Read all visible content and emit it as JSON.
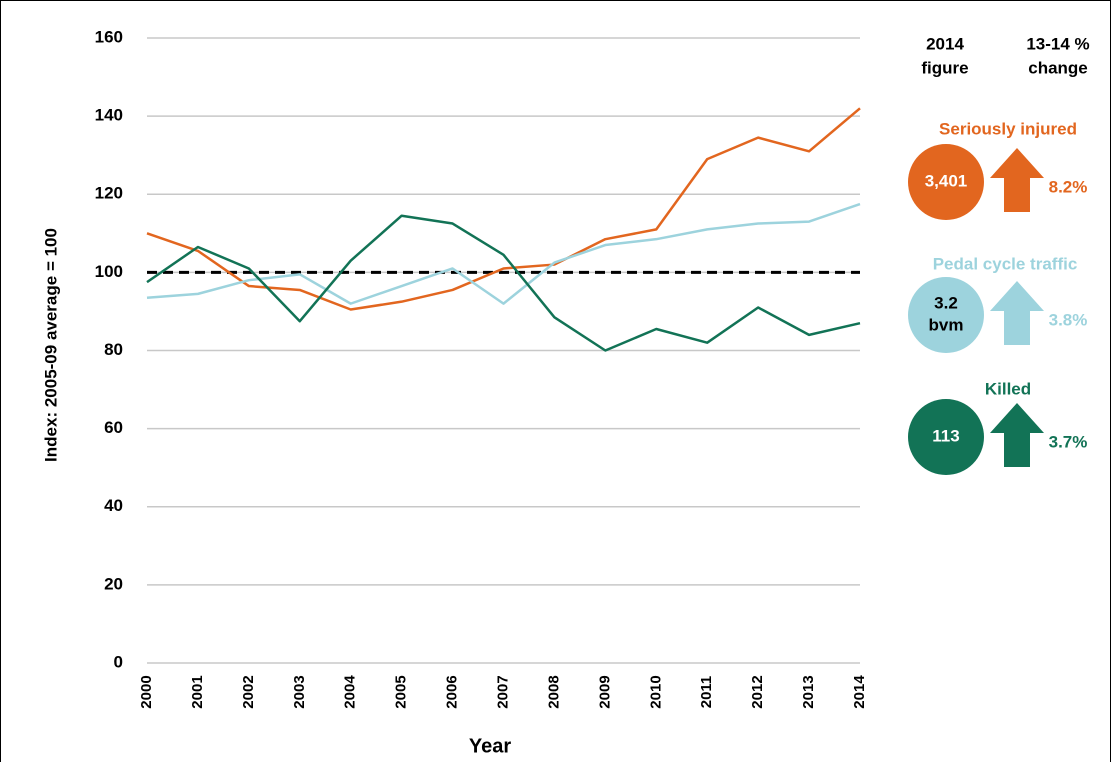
{
  "chart_data": {
    "type": "line",
    "y_label": "Index: 2005-09 average = 100",
    "x_label": "Year",
    "x": [
      2000,
      2001,
      2002,
      2003,
      2004,
      2005,
      2006,
      2007,
      2008,
      2009,
      2010,
      2011,
      2012,
      2013,
      2014
    ],
    "xlim": [
      2000,
      2014
    ],
    "xticks": [
      2000,
      2001,
      2002,
      2003,
      2004,
      2005,
      2006,
      2007,
      2008,
      2009,
      2010,
      2011,
      2012,
      2013,
      2014
    ],
    "ylim": [
      0,
      160
    ],
    "yticks": [
      0,
      20,
      40,
      60,
      80,
      100,
      120,
      140,
      160
    ],
    "grid": true,
    "reference_line": 100,
    "figure_header": [
      "2014",
      "figure"
    ],
    "change_header": [
      "13-14 %",
      "change"
    ],
    "series": [
      {
        "name": "Seriously injured",
        "color": "#e2661f",
        "figure": [
          "3,401"
        ],
        "change": "8.2%",
        "values": [
          110,
          105.5,
          96.5,
          95.5,
          90.5,
          92.5,
          95.5,
          101,
          102,
          108.5,
          111,
          129,
          134.5,
          131,
          142
        ]
      },
      {
        "name": "Pedal cycle traffic",
        "color": "#9dd3dd",
        "figure": [
          "3.2",
          "bvm"
        ],
        "change": "3.8%",
        "values": [
          93.5,
          94.5,
          98,
          99.5,
          92,
          96.5,
          101,
          92,
          102.5,
          107,
          108.5,
          111,
          112.5,
          113,
          117.5
        ]
      },
      {
        "name": "Killed",
        "color": "#127356",
        "figure": [
          "113"
        ],
        "change": "3.7%",
        "values": [
          97.5,
          106.5,
          101,
          87.5,
          103,
          114.5,
          112.5,
          104.5,
          88.5,
          80,
          85.5,
          82,
          91,
          84,
          87
        ]
      }
    ]
  }
}
